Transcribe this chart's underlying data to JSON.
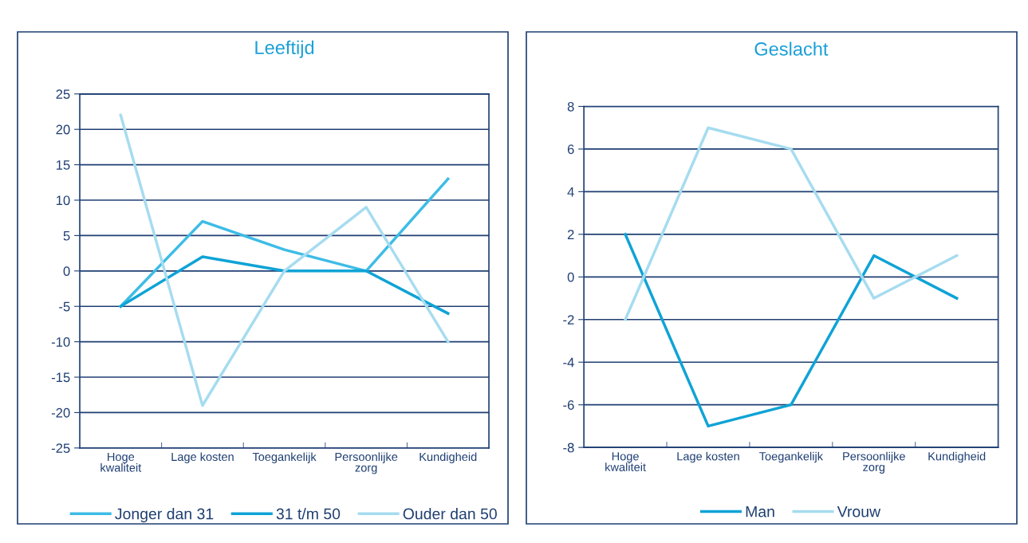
{
  "chart_data": [
    {
      "type": "line",
      "title": "Leeftijd",
      "categories": [
        "Hoge\nkwaliteit",
        "Lage kosten",
        "Toegankelijk",
        "Persoonlijke\nzorg",
        "Kundigheid"
      ],
      "series": [
        {
          "name": "Jonger dan 31",
          "color": "#3dbce6",
          "values": [
            -5,
            7,
            3,
            0,
            13
          ]
        },
        {
          "name": "31 t/m 50",
          "color": "#0fa3d6",
          "values": [
            -5,
            2,
            0,
            0,
            -6
          ]
        },
        {
          "name": "Ouder dan 50",
          "color": "#a6dcf0",
          "values": [
            22,
            -19,
            0,
            9,
            -10
          ]
        }
      ],
      "ylim": [
        -25,
        25
      ],
      "yticks": [
        -25,
        -20,
        -15,
        -10,
        -5,
        0,
        5,
        10,
        15,
        20,
        25
      ],
      "grid": "y",
      "legend": "bottom",
      "marker": "none",
      "line_style": "solid"
    },
    {
      "type": "line",
      "title": "Geslacht",
      "categories": [
        "Hoge\nkwaliteit",
        "Lage kosten",
        "Toegankelijk",
        "Persoonlijke\nzorg",
        "Kundigheid"
      ],
      "series": [
        {
          "name": "Man",
          "color": "#0fa3d6",
          "values": [
            2,
            -7,
            -6,
            1,
            -1
          ]
        },
        {
          "name": "Vrouw",
          "color": "#a6dcf0",
          "values": [
            -2,
            7,
            6,
            -1,
            1
          ]
        }
      ],
      "ylim": [
        -8,
        8
      ],
      "yticks": [
        -8,
        -6,
        -4,
        -2,
        0,
        2,
        4,
        6,
        8
      ],
      "grid": "y",
      "legend": "bottom",
      "marker": "none",
      "line_style": "solid"
    }
  ]
}
